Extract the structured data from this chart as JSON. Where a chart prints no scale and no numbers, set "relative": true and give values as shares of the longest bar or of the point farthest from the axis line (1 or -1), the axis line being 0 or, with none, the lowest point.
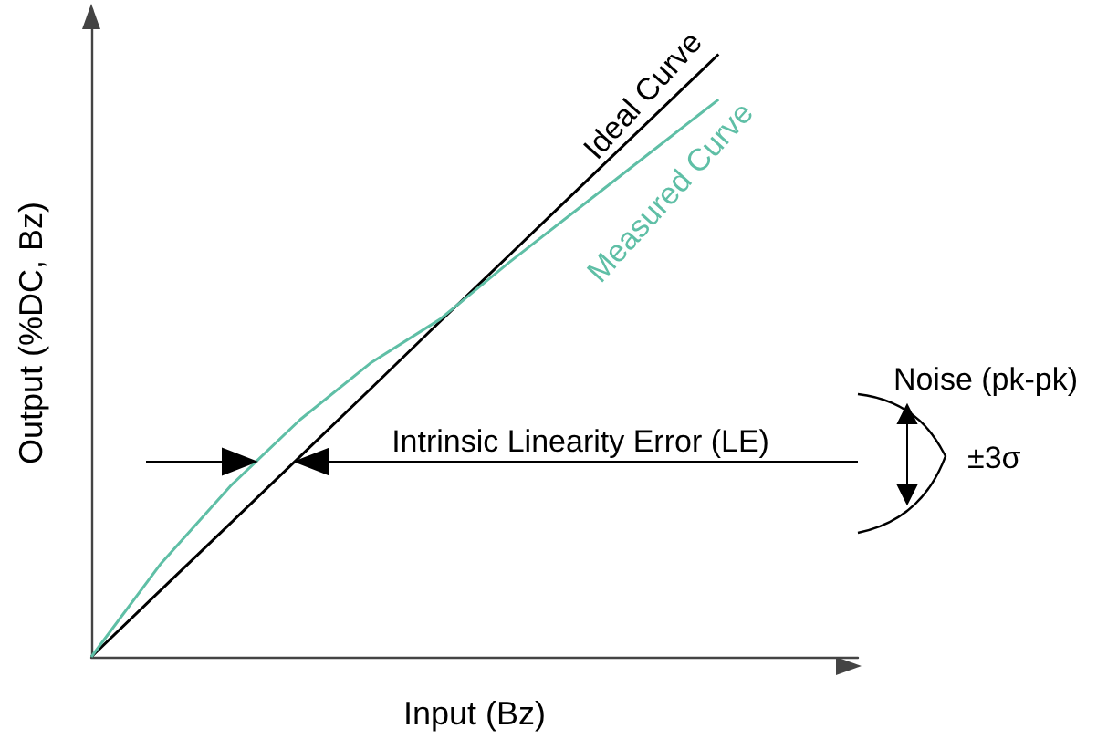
{
  "chart_data": {
    "type": "line",
    "relative": true,
    "xlabel": "Input (Bz)",
    "ylabel": "Output (%DC, Bz)",
    "categories": [
      null,
      null,
      null,
      null,
      null,
      null,
      null,
      null,
      null,
      null,
      null,
      null
    ],
    "series": [
      {
        "name": "Ideal Curve",
        "color": "#000000",
        "values": [
          0,
          0.111,
          0.222,
          0.333,
          0.444,
          0.556,
          0.667,
          0.778,
          0.889,
          1,
          null,
          null
        ]
      },
      {
        "name": "Measured Curve",
        "color": "#5fbfa6",
        "values": [
          0,
          0.155,
          0.284,
          0.394,
          0.487,
          0.56,
          0.655,
          0.745,
          0.835,
          0.925,
          null,
          null
        ]
      }
    ],
    "annotations": [
      "Intrinsic Linearity Error (LE)",
      "Noise (pk-pk)",
      "±3σ"
    ],
    "grid": false,
    "legend": false,
    "marker": "none",
    "line_style": "solid"
  }
}
